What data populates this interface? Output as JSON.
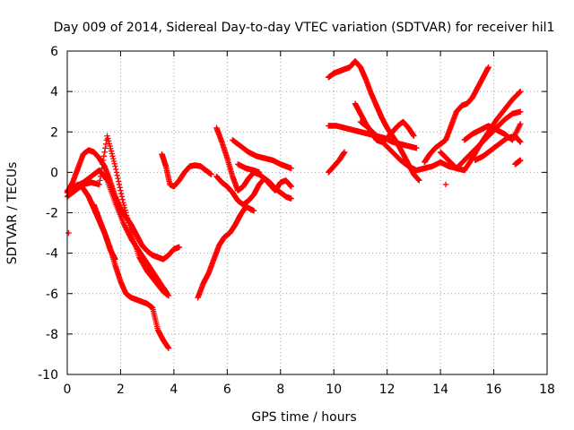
{
  "chart_data": {
    "type": "scatter",
    "title": "Day 009 of 2014, Sidereal Day-to-day VTEC variation (SDTVAR) for receiver hil1",
    "xlabel": "GPS time / hours",
    "ylabel": "SDTVAR / TECUs",
    "xlim": [
      0,
      18
    ],
    "ylim": [
      -10,
      6
    ],
    "xticks": [
      0,
      2,
      4,
      6,
      8,
      10,
      12,
      14,
      16,
      18
    ],
    "yticks": [
      -10,
      -8,
      -6,
      -4,
      -2,
      0,
      2,
      4,
      6
    ],
    "grid": true,
    "marker": "+",
    "marker_color": "#ff0000",
    "series": [
      {
        "x": [
          0.0,
          0.2,
          0.4,
          0.6,
          0.8,
          1.0,
          1.2,
          1.4,
          1.6,
          1.8,
          2.0,
          2.2,
          2.4,
          2.6,
          2.8,
          3.0,
          3.2,
          3.4,
          3.6,
          3.8,
          4.0,
          4.2
        ],
        "y": [
          -1.0,
          -0.5,
          0.2,
          0.9,
          1.1,
          1.0,
          0.7,
          0.3,
          -0.4,
          -1.2,
          -1.8,
          -2.2,
          -2.6,
          -3.1,
          -3.6,
          -3.9,
          -4.1,
          -4.2,
          -4.3,
          -4.1,
          -3.8,
          -3.7
        ]
      },
      {
        "x": [
          0.0,
          0.3,
          0.6,
          0.9,
          1.2,
          1.5,
          1.8,
          2.1,
          2.4,
          2.7,
          3.0,
          3.3,
          3.6,
          3.75
        ],
        "y": [
          -0.9,
          -0.7,
          -0.5,
          -0.2,
          0.1,
          -0.4,
          -1.5,
          -2.5,
          -3.3,
          -3.9,
          -4.5,
          -5.1,
          -5.7,
          -6.0
        ]
      },
      {
        "x": [
          0.0,
          0.3,
          0.6,
          0.9,
          1.2,
          1.5,
          1.8,
          2.1,
          2.4,
          2.7,
          3.0,
          3.3,
          3.6,
          3.8
        ],
        "y": [
          -1.2,
          -0.9,
          -0.6,
          -0.5,
          -0.6,
          1.8,
          0.3,
          -1.5,
          -3.0,
          -4.2,
          -4.9,
          -5.4,
          -5.9,
          -6.1
        ]
      },
      {
        "x": [
          0.0,
          0.2,
          0.4,
          0.6,
          0.8,
          1.0,
          1.2,
          1.4,
          1.6,
          1.8,
          2.0,
          2.2,
          2.4,
          2.6,
          2.8,
          3.0,
          3.2,
          3.4,
          3.6,
          3.8
        ],
        "y": [
          -1.0,
          -0.8,
          -0.6,
          -0.8,
          -1.2,
          -1.8,
          -2.4,
          -3.0,
          -3.7,
          -4.6,
          -5.4,
          -6.0,
          -6.2,
          -6.3,
          -6.4,
          -6.5,
          -6.7,
          -7.8,
          -8.3,
          -8.7
        ]
      },
      {
        "x": [
          1.0,
          1.2,
          1.4,
          1.6,
          1.8
        ],
        "y": [
          -1.6,
          -2.3,
          -3.0,
          -3.8,
          -4.3
        ]
      },
      {
        "x": [
          0.05
        ],
        "y": [
          -3.0
        ]
      },
      {
        "x": [
          3.55,
          3.7,
          3.85,
          4.0,
          4.2,
          4.4,
          4.6,
          4.8,
          5.0,
          5.2,
          5.4
        ],
        "y": [
          0.9,
          0.3,
          -0.6,
          -0.7,
          -0.4,
          0.0,
          0.3,
          0.35,
          0.3,
          0.1,
          -0.1
        ]
      },
      {
        "x": [
          4.9,
          5.1,
          5.3,
          5.5,
          5.7,
          5.9,
          6.1,
          6.3,
          6.5,
          6.7,
          7.0
        ],
        "y": [
          -6.2,
          -5.5,
          -5.0,
          -4.3,
          -3.6,
          -3.2,
          -3.0,
          -2.6,
          -2.1,
          -1.7,
          -1.9
        ]
      },
      {
        "x": [
          5.6,
          5.8,
          6.0,
          6.2,
          6.4,
          6.6,
          6.8,
          7.0,
          7.2,
          7.4,
          7.6,
          7.8,
          8.0,
          8.2,
          8.4
        ],
        "y": [
          2.2,
          1.5,
          0.7,
          -0.2,
          -0.9,
          -0.7,
          -0.3,
          0.0,
          -0.1,
          -0.3,
          -0.5,
          -0.8,
          -1.0,
          -1.2,
          -1.3
        ]
      },
      {
        "x": [
          5.6,
          5.8,
          6.0,
          6.2,
          6.4,
          6.6,
          6.8,
          7.0,
          7.2,
          7.4,
          7.6,
          7.8,
          8.0,
          8.2,
          8.4
        ],
        "y": [
          -0.2,
          -0.5,
          -0.7,
          -1.0,
          -1.4,
          -1.6,
          -1.4,
          -1.1,
          -0.6,
          -0.3,
          -0.6,
          -0.9,
          -0.5,
          -0.4,
          -0.7
        ]
      },
      {
        "x": [
          6.2,
          6.5,
          6.8,
          7.1,
          7.4,
          7.7,
          8.0,
          8.2,
          8.4
        ],
        "y": [
          1.6,
          1.3,
          1.0,
          0.8,
          0.7,
          0.6,
          0.4,
          0.3,
          0.2
        ]
      },
      {
        "x": [
          6.4,
          6.7,
          7.0,
          7.2
        ],
        "y": [
          0.4,
          0.2,
          0.1,
          0.0
        ]
      },
      {
        "x": [
          9.8,
          10.0,
          10.2,
          10.4,
          10.6,
          10.8,
          11.0,
          11.2,
          11.4,
          11.6,
          11.8,
          12.0,
          12.2,
          12.4,
          12.6,
          12.8,
          13.0,
          13.2
        ],
        "y": [
          4.7,
          4.9,
          5.0,
          5.1,
          5.2,
          5.5,
          5.2,
          4.6,
          3.9,
          3.3,
          2.7,
          2.2,
          1.8,
          1.4,
          0.9,
          0.4,
          -0.1,
          -0.4
        ]
      },
      {
        "x": [
          9.8,
          10.1,
          10.4,
          10.7,
          11.0,
          11.3,
          11.6,
          11.9,
          12.2,
          12.5,
          12.8,
          13.1
        ],
        "y": [
          2.3,
          2.3,
          2.2,
          2.1,
          2.0,
          1.9,
          1.8,
          1.7,
          1.5,
          1.4,
          1.3,
          1.2
        ]
      },
      {
        "x": [
          9.8,
          10.0,
          10.2,
          10.4
        ],
        "y": [
          0.0,
          0.3,
          0.6,
          1.0
        ]
      },
      {
        "x": [
          10.8,
          11.0,
          11.2,
          11.4,
          11.6,
          11.8,
          12.0,
          12.2,
          12.4,
          12.6,
          12.8,
          13.0
        ],
        "y": [
          3.4,
          2.9,
          2.4,
          2.0,
          1.6,
          1.5,
          1.7,
          2.0,
          2.3,
          2.5,
          2.2,
          1.8
        ]
      },
      {
        "x": [
          11.0,
          11.3,
          11.6,
          11.9,
          12.2,
          12.5,
          12.8,
          13.1,
          13.4,
          13.7,
          14.0,
          14.3,
          14.6
        ],
        "y": [
          2.5,
          2.2,
          1.8,
          1.4,
          1.0,
          0.6,
          0.3,
          0.1,
          0.2,
          0.3,
          0.5,
          0.3,
          0.2
        ]
      },
      {
        "x": [
          13.4,
          13.6,
          13.8,
          14.0,
          14.2,
          14.4,
          14.6,
          14.8,
          15.0,
          15.2,
          15.4,
          15.6,
          15.8
        ],
        "y": [
          0.5,
          0.9,
          1.2,
          1.4,
          1.6,
          2.3,
          3.0,
          3.3,
          3.4,
          3.7,
          4.2,
          4.7,
          5.2
        ]
      },
      {
        "x": [
          14.0,
          14.3,
          14.6,
          14.9,
          15.2,
          15.5,
          15.8,
          16.1,
          16.4,
          16.7,
          17.0
        ],
        "y": [
          1.0,
          0.6,
          0.2,
          0.1,
          0.7,
          1.4,
          2.0,
          2.6,
          3.1,
          3.6,
          4.0
        ]
      },
      {
        "x": [
          14.6,
          14.9,
          15.2,
          15.5,
          15.8,
          16.1,
          16.4,
          16.7,
          17.0
        ],
        "y": [
          0.2,
          0.6,
          1.0,
          1.4,
          1.8,
          2.2,
          2.6,
          2.9,
          3.0
        ]
      },
      {
        "x": [
          14.9,
          15.2,
          15.5,
          15.8,
          16.1,
          16.4,
          16.7,
          17.0
        ],
        "y": [
          1.6,
          1.9,
          2.1,
          2.3,
          2.1,
          1.9,
          1.6,
          2.4
        ]
      },
      {
        "x": [
          15.3,
          15.6,
          15.9,
          16.2,
          16.5,
          16.8,
          17.0
        ],
        "y": [
          0.6,
          0.8,
          1.1,
          1.4,
          1.7,
          1.8,
          1.5
        ]
      },
      {
        "x": [
          14.2
        ],
        "y": [
          -0.6
        ]
      },
      {
        "x": [
          16.8,
          16.9,
          17.0
        ],
        "y": [
          0.4,
          0.5,
          0.6
        ]
      }
    ]
  }
}
